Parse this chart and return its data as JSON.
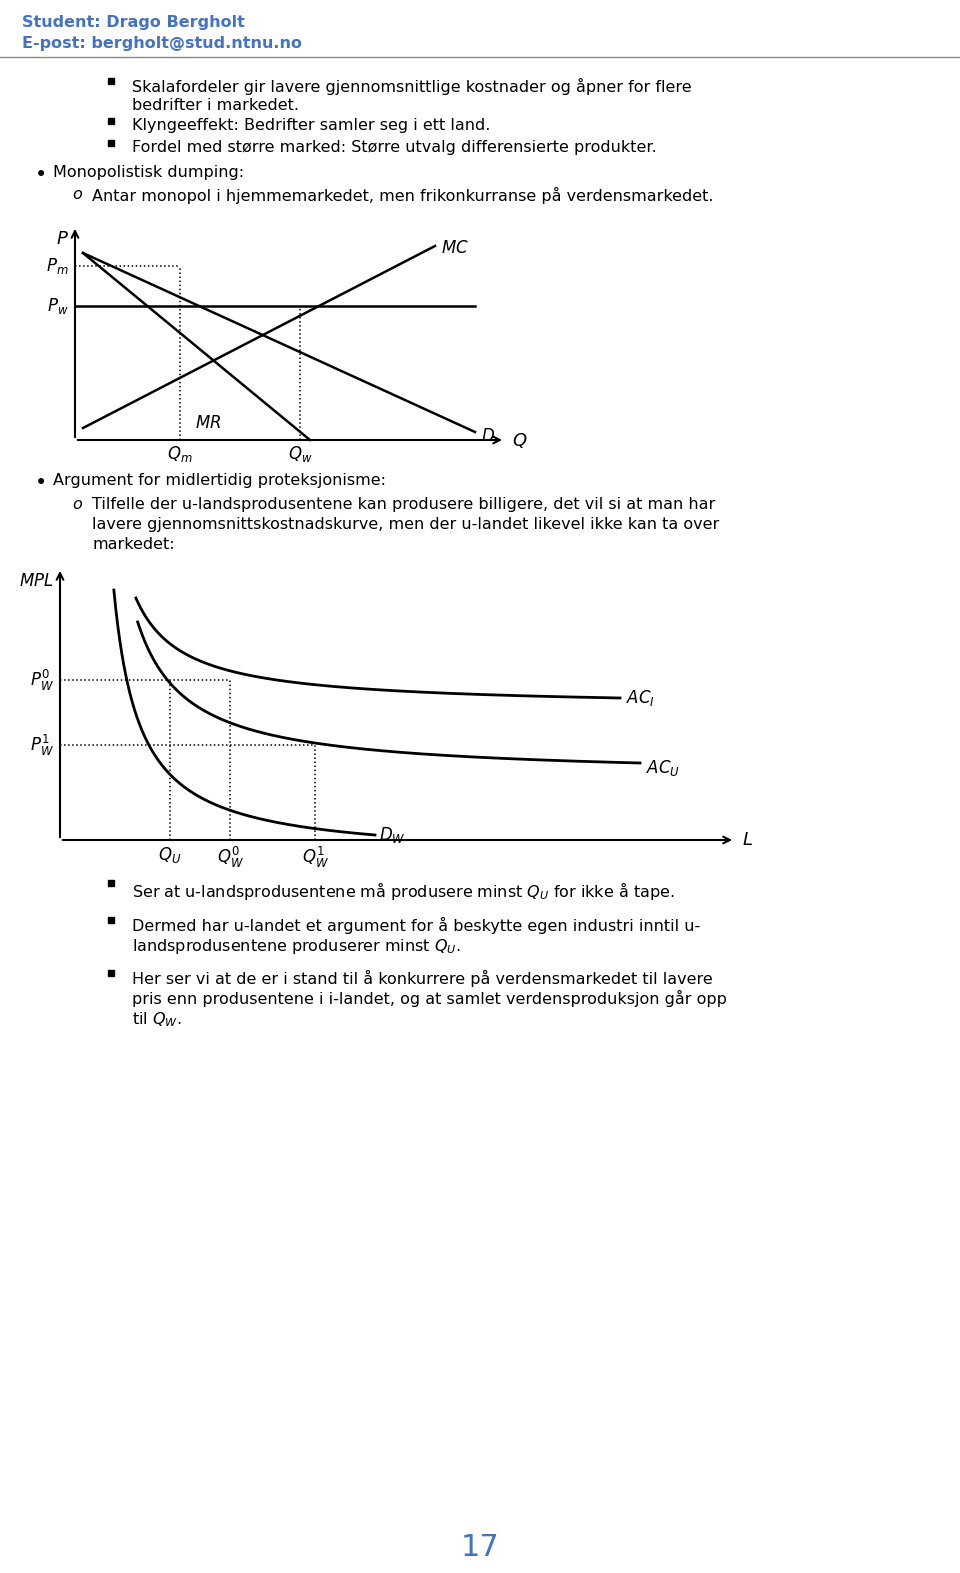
{
  "header_name": "Student: Drago Bergholt",
  "header_email": "E-post: bergholt@stud.ntnu.no",
  "header_color": "#4472C4",
  "bullet1": "Skalafordeler gir lavere gjennomsnittlige kostnader og åpner for flere bedrifter i markedet.",
  "bullet2": "Klyngeeffekt: Bedrifter samler seg i ett land.",
  "bullet3": "Fordel med større marked: Større utvalg differensierte produkter.",
  "bullet_mono": "Monopolistisk dumping:",
  "sub_mono": "Antar monopol i hjemmemarkedet, men frikonkurranse på verdensmarkedet.",
  "bullet_arg": "Argument for midlertidig proteksjonisme:",
  "sub_arg_line1": "Tilfelle der u-landsprodusentene kan produsere billigere, det vil si at man har",
  "sub_arg_line2": "lavere gjennomsnittskostnadskurve, men der u-landet likevel ikke kan ta over",
  "sub_arg_line3": "markedet:",
  "bullet_s1": "Ser at u-landsprodusentene må produsere minst ",
  "bullet_s1b": " for ikke å tape.",
  "bullet_s2a": "Dermed har u-landet et argument for å beskytte egen industri inntil u-",
  "bullet_s2b": "landsprodusentene produserer minst ",
  "bullet_s2c": ".",
  "bullet_s3a": "Her ser vi at de er i stand til å konkurrere på verdensmarkedet til lavere",
  "bullet_s3b": "pris enn produsentene i i-landet, og at samlet verdensproduksjon går opp",
  "bullet_s3c": "til ",
  "bullet_s3d": ".",
  "page_number": "17",
  "page_color": "#4472C4",
  "background": "#ffffff",
  "text_color": "#000000"
}
